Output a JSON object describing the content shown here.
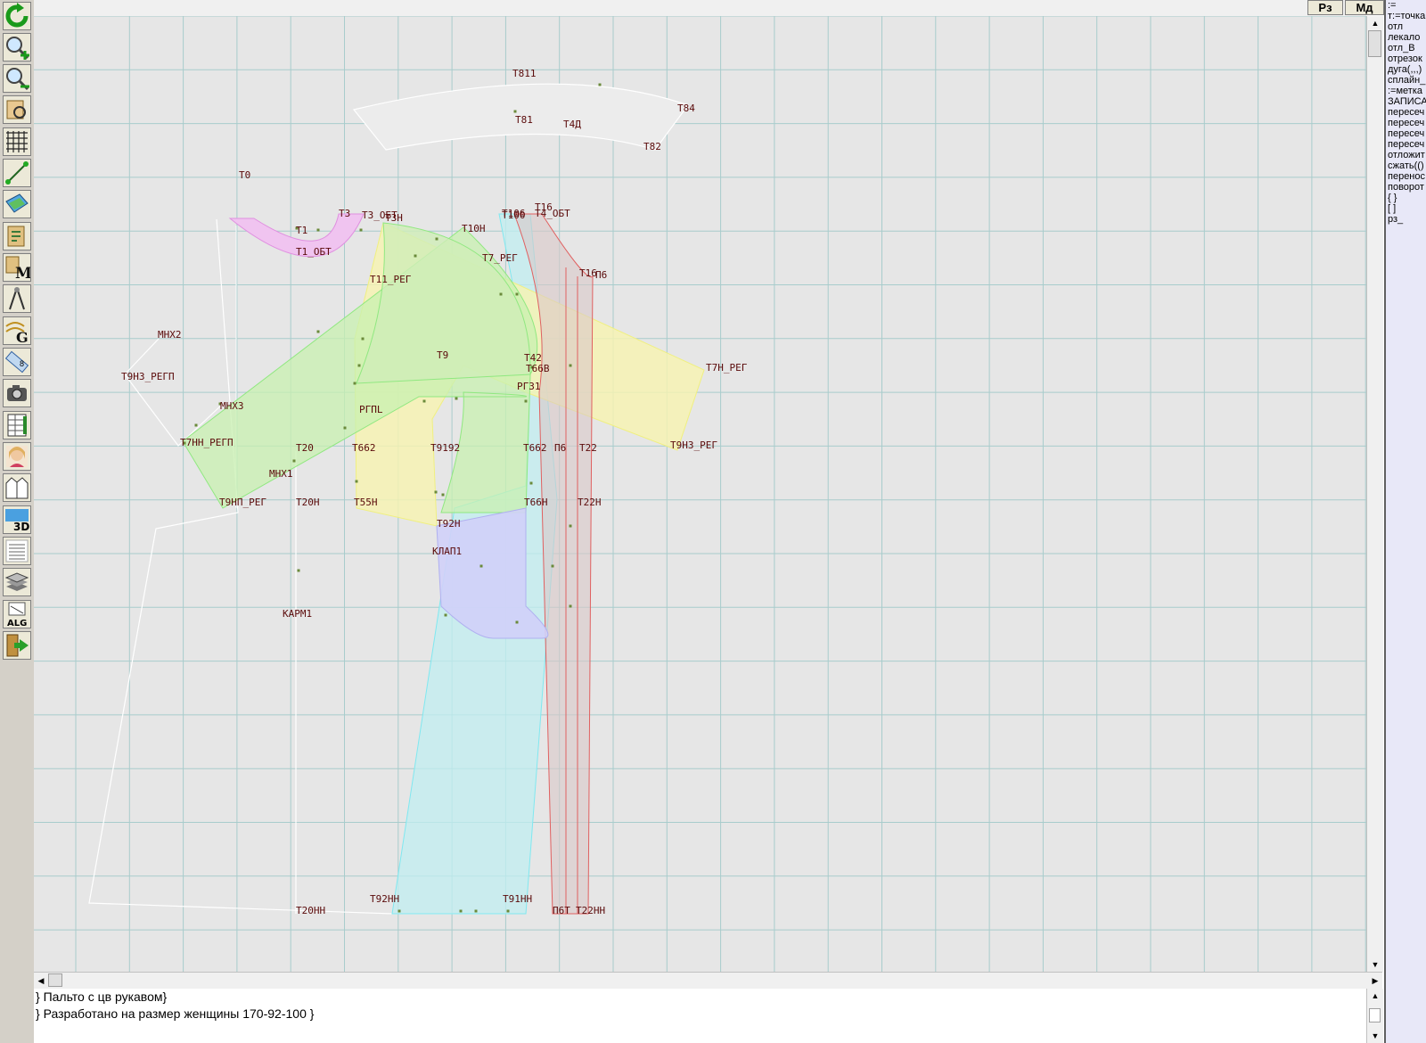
{
  "top_buttons": [
    "Рз",
    "Мд"
  ],
  "toolbar": {
    "tools": [
      {
        "name": "refresh-icon"
      },
      {
        "name": "zoom-in-icon"
      },
      {
        "name": "zoom-out-icon"
      },
      {
        "name": "pattern-view-icon"
      },
      {
        "name": "grid-icon"
      },
      {
        "name": "line-tool-icon"
      },
      {
        "name": "map-layer-icon"
      },
      {
        "name": "pattern-edit-icon"
      },
      {
        "name": "measure-m-icon"
      },
      {
        "name": "compass-icon"
      },
      {
        "name": "grading-g-icon"
      },
      {
        "name": "ruler-icon"
      },
      {
        "name": "camera-icon"
      },
      {
        "name": "table-icon"
      },
      {
        "name": "portrait-icon"
      },
      {
        "name": "jacket-icon"
      },
      {
        "name": "3d-view-icon"
      },
      {
        "name": "document-icon"
      },
      {
        "name": "layers-icon"
      },
      {
        "name": "algorithm-alg-icon"
      },
      {
        "name": "exit-icon"
      }
    ],
    "label_3d": "3D",
    "label_alg": "ALG",
    "label_m": "M",
    "label_g": "G"
  },
  "right_panel": {
    "commands": [
      ":=",
      "т:=точка",
      "отл",
      "лекало",
      "отл_В",
      "отрезок",
      "дуга(,,,)",
      "сплайн_",
      ":=метка",
      "ЗАПИСА",
      "пересеч",
      "пересеч",
      "пересеч",
      "пересеч",
      "отложит",
      "сжать(()",
      "перенос",
      "поворот",
      "{ }",
      "[ ]",
      "рз_"
    ]
  },
  "bottom_text": {
    "line1": "} Пальто с цв рукавом}",
    "line2": "} Разработано на размер женщины 170-92-100 }"
  },
  "canvas": {
    "colors": {
      "background": "#e6e6e6",
      "grid": "#a8cccc",
      "label": "#5a0a0a",
      "pink": "#f0b0f0",
      "green": "#c8f0b0",
      "yellow": "#f8f4b0",
      "cyan": "#c0eef0",
      "purple": "#d0d0f8",
      "red": "#e06060",
      "outline_white": "#ffffff"
    },
    "labels": [
      {
        "text": "Т811"
      },
      {
        "text": "Т84"
      },
      {
        "text": "Т81"
      },
      {
        "text": "Т4Д"
      },
      {
        "text": "Т82"
      },
      {
        "text": "Т0"
      },
      {
        "text": "Т3"
      },
      {
        "text": "Т3_ОБТ"
      },
      {
        "text": "Т3Н"
      },
      {
        "text": "Т100"
      },
      {
        "text": "Т106"
      },
      {
        "text": "Т16"
      },
      {
        "text": "Т4_ОБТ"
      },
      {
        "text": "Т1"
      },
      {
        "text": "Т10Н"
      },
      {
        "text": "Т1_ОБТ"
      },
      {
        "text": "Т7_РЕГ"
      },
      {
        "text": "Т16"
      },
      {
        "text": "П6"
      },
      {
        "text": "Т11_РЕГ"
      },
      {
        "text": "МНХ2"
      },
      {
        "text": "Т9"
      },
      {
        "text": "Т42"
      },
      {
        "text": "Т66В"
      },
      {
        "text": "Т7Н_РЕГ"
      },
      {
        "text": "Т9Н3_РЕГП"
      },
      {
        "text": "РГ31"
      },
      {
        "text": "МНХ3"
      },
      {
        "text": "РГПL"
      },
      {
        "text": "Т7НН_РЕГП"
      },
      {
        "text": "Т20"
      },
      {
        "text": "Т662"
      },
      {
        "text": "Т9192"
      },
      {
        "text": "Т662"
      },
      {
        "text": "П6"
      },
      {
        "text": "Т22"
      },
      {
        "text": "Т9Н3_РЕГ"
      },
      {
        "text": "МНХ1"
      },
      {
        "text": "Т9НП_РЕГ"
      },
      {
        "text": "Т20Н"
      },
      {
        "text": "Т55Н"
      },
      {
        "text": "Т66Н"
      },
      {
        "text": "Т22Н"
      },
      {
        "text": "Т92Н"
      },
      {
        "text": "КЛАП1"
      },
      {
        "text": "КАРМ1"
      },
      {
        "text": "Т92НН"
      },
      {
        "text": "Т91НН"
      },
      {
        "text": "П6Т"
      },
      {
        "text": "Т22НН"
      },
      {
        "text": "Т20НН"
      }
    ]
  }
}
